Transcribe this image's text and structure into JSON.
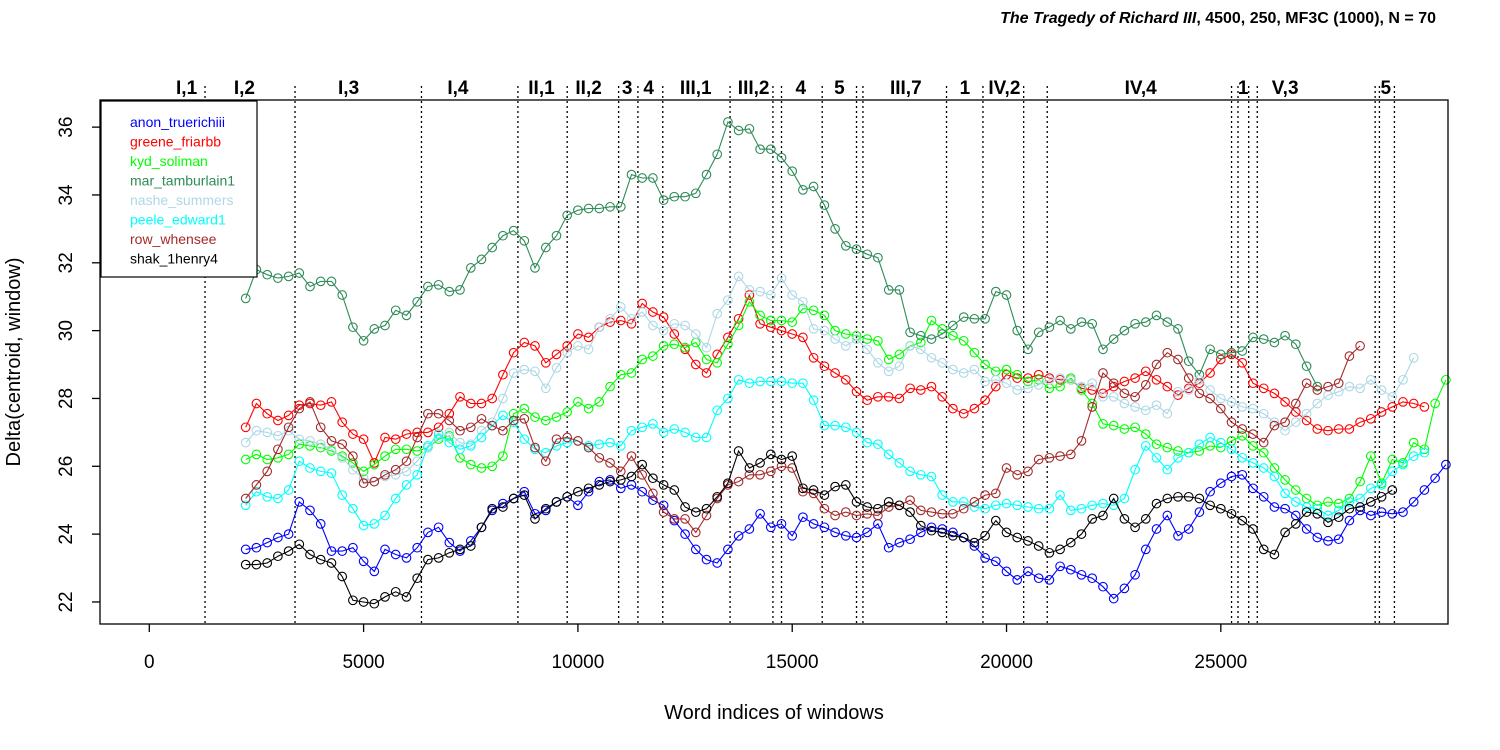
{
  "chart_data": {
    "type": "line",
    "title_italic": "The Tragedy of Richard III",
    "title_rest": ", 4500, 250, MF3C (1000), N = 70",
    "xlabel": "Word indices of windows",
    "ylabel": "Delta(centroid, window)",
    "xlim": [
      -1150,
      30300
    ],
    "ylim": [
      21.35,
      36.8
    ],
    "xticks": [
      0,
      5000,
      10000,
      15000,
      20000,
      25000
    ],
    "xtick_labels": [
      "0",
      "5000",
      "10000",
      "15000",
      "20000",
      "25000"
    ],
    "yticks": [
      22,
      24,
      26,
      28,
      30,
      32,
      34,
      36
    ],
    "ytick_labels": [
      "22",
      "24",
      "26",
      "28",
      "30",
      "32",
      "34",
      "36"
    ],
    "legend_position": "top-left",
    "x_start": 2250,
    "x_step": 250,
    "scene_boundaries": [
      1300,
      3400,
      6350,
      8600,
      9750,
      10950,
      11400,
      11980,
      13550,
      14550,
      14750,
      15700,
      16500,
      16650,
      18600,
      19450,
      20400,
      20950,
      25250,
      25400,
      25650,
      25850,
      28600,
      28700,
      29050
    ],
    "scene_labels": [
      {
        "text": "I,1",
        "x": 870
      },
      {
        "text": "I,2",
        "x": 2220
      },
      {
        "text": "I,3",
        "x": 4650
      },
      {
        "text": "I,4",
        "x": 7200
      },
      {
        "text": "II,1",
        "x": 9150
      },
      {
        "text": "II,2",
        "x": 10250
      },
      {
        "text": "3",
        "x": 11150
      },
      {
        "text": "4",
        "x": 11650
      },
      {
        "text": "III,1",
        "x": 12750
      },
      {
        "text": "III,2",
        "x": 14100
      },
      {
        "text": "4",
        "x": 15200
      },
      {
        "text": "5",
        "x": 16100
      },
      {
        "text": "III,7",
        "x": 17650
      },
      {
        "text": "1",
        "x": 19030
      },
      {
        "text": "IV,2",
        "x": 19950
      },
      {
        "text": "IV,4",
        "x": 23130
      },
      {
        "text": "1",
        "x": 25520
      },
      {
        "text": "V,3",
        "x": 26500
      },
      {
        "text": "5",
        "x": 28850
      }
    ],
    "series": [
      {
        "name": "anon_truerichiii",
        "color": "#0000ff",
        "values": [
          23.55,
          23.6,
          23.75,
          23.9,
          24.0,
          24.95,
          24.7,
          24.3,
          23.5,
          23.5,
          23.6,
          23.2,
          22.9,
          23.55,
          23.4,
          23.3,
          23.6,
          24.05,
          24.2,
          23.75,
          23.5,
          23.8,
          24.2,
          24.7,
          24.9,
          25.05,
          25.25,
          24.6,
          24.7,
          24.95,
          25.1,
          24.85,
          25.25,
          25.55,
          25.6,
          25.35,
          25.45,
          25.25,
          25.0,
          24.85,
          24.4,
          24.0,
          23.55,
          23.25,
          23.15,
          23.55,
          23.95,
          24.15,
          24.6,
          24.2,
          24.3,
          23.95,
          24.5,
          24.3,
          24.2,
          24.05,
          23.95,
          23.9,
          24.05,
          24.3,
          23.6,
          23.75,
          23.85,
          24.05,
          24.2,
          24.15,
          24.05,
          23.9,
          23.65,
          23.3,
          23.2,
          22.9,
          22.65,
          22.9,
          22.7,
          22.65,
          23.05,
          22.95,
          22.8,
          22.7,
          22.45,
          22.1,
          22.4,
          22.8,
          23.55,
          24.15,
          24.55,
          23.95,
          24.15,
          24.65,
          25.25,
          25.5,
          25.7,
          25.75,
          25.35,
          25.1,
          24.8,
          24.75,
          24.55,
          24.15,
          23.9,
          23.8,
          23.85,
          24.4,
          24.7,
          24.55,
          24.65,
          24.6,
          24.65,
          24.95,
          25.3,
          25.65,
          26.05
        ]
      },
      {
        "name": "greene_friarbb",
        "color": "#ff0000",
        "values": [
          27.15,
          27.85,
          27.55,
          27.35,
          27.5,
          27.8,
          27.85,
          27.8,
          27.9,
          27.3,
          26.95,
          26.8,
          26.1,
          26.85,
          26.8,
          26.95,
          27.0,
          27.0,
          27.15,
          27.55,
          28.05,
          27.85,
          27.85,
          28.0,
          28.7,
          29.35,
          29.65,
          29.55,
          29.05,
          29.3,
          29.55,
          29.9,
          29.8,
          30.1,
          30.25,
          30.3,
          30.2,
          30.8,
          30.55,
          30.4,
          29.9,
          29.45,
          29.0,
          28.75,
          29.3,
          29.8,
          30.35,
          31.05,
          30.2,
          30.1,
          30.0,
          29.9,
          29.8,
          29.2,
          28.95,
          28.75,
          28.55,
          28.2,
          27.95,
          28.05,
          28.05,
          28.0,
          28.3,
          28.25,
          28.35,
          28.05,
          27.7,
          27.55,
          27.7,
          27.95,
          28.35,
          28.7,
          28.6,
          28.6,
          28.7,
          28.6,
          28.55,
          28.55,
          28.3,
          28.25,
          28.15,
          28.35,
          28.5,
          28.6,
          28.8,
          28.55,
          28.35,
          28.1,
          28.3,
          28.45,
          28.75,
          29.15,
          29.3,
          29.05,
          28.45,
          28.3,
          28.15,
          27.9,
          27.6,
          27.35,
          27.1,
          27.05,
          27.1,
          27.1,
          27.3,
          27.4,
          27.6,
          27.75,
          27.9,
          27.85,
          27.75
        ]
      },
      {
        "name": "kyd_soliman",
        "color": "#00ff00",
        "values": [
          26.2,
          26.35,
          26.2,
          26.25,
          26.35,
          26.65,
          26.6,
          26.55,
          26.45,
          26.3,
          26.1,
          25.85,
          26.05,
          26.3,
          26.5,
          26.5,
          26.45,
          26.55,
          26.8,
          26.9,
          26.25,
          26.05,
          25.95,
          26.0,
          26.3,
          27.55,
          27.7,
          27.45,
          27.35,
          27.45,
          27.6,
          27.9,
          27.7,
          27.9,
          28.35,
          28.7,
          28.75,
          29.15,
          29.25,
          29.55,
          29.6,
          29.5,
          29.65,
          29.15,
          29.05,
          29.6,
          30.15,
          30.85,
          30.45,
          30.3,
          30.3,
          30.25,
          30.65,
          30.6,
          30.45,
          30.0,
          29.9,
          29.85,
          29.75,
          29.7,
          29.15,
          29.3,
          29.55,
          29.65,
          30.3,
          30.05,
          29.85,
          29.7,
          29.35,
          29.0,
          28.8,
          28.85,
          28.7,
          28.5,
          28.55,
          28.3,
          28.35,
          28.6,
          28.25,
          27.85,
          27.25,
          27.2,
          27.1,
          27.15,
          26.95,
          26.65,
          26.55,
          26.45,
          26.4,
          26.45,
          26.6,
          26.55,
          26.75,
          26.9,
          26.6,
          26.4,
          25.95,
          25.6,
          25.3,
          25.05,
          24.85,
          24.95,
          24.9,
          25.05,
          25.55,
          26.3,
          25.5,
          26.2,
          26.1,
          26.7,
          26.5,
          27.85,
          28.55
        ]
      },
      {
        "name": "mar_tamburlain1",
        "color": "#2e8b57",
        "values": [
          30.95,
          31.8,
          31.65,
          31.55,
          31.6,
          31.7,
          31.3,
          31.45,
          31.45,
          31.05,
          30.1,
          29.7,
          30.05,
          30.15,
          30.6,
          30.45,
          30.85,
          31.3,
          31.35,
          31.15,
          31.2,
          31.85,
          32.1,
          32.45,
          32.8,
          32.95,
          32.65,
          31.85,
          32.45,
          32.8,
          33.4,
          33.55,
          33.6,
          33.6,
          33.65,
          33.65,
          34.6,
          34.5,
          34.5,
          33.85,
          33.95,
          33.95,
          34.05,
          34.6,
          35.2,
          36.15,
          35.9,
          35.95,
          35.35,
          35.35,
          35.1,
          34.7,
          34.15,
          34.25,
          33.7,
          33.0,
          32.5,
          32.4,
          32.25,
          32.15,
          31.2,
          31.2,
          29.95,
          29.85,
          29.75,
          29.9,
          30.15,
          30.4,
          30.35,
          30.35,
          31.15,
          31.05,
          30.0,
          29.45,
          29.95,
          30.1,
          30.3,
          30.05,
          30.25,
          30.2,
          29.45,
          29.75,
          30.0,
          30.2,
          30.25,
          30.45,
          30.25,
          30.05,
          29.1,
          28.7,
          29.45,
          29.3,
          29.35,
          29.4,
          29.8,
          29.75,
          29.65,
          29.85,
          29.6,
          28.95,
          28.35
        ]
      },
      {
        "name": "nashe_summers",
        "color": "#add8e6",
        "values": [
          26.7,
          27.05,
          27.0,
          26.9,
          27.05,
          26.8,
          26.75,
          26.65,
          26.5,
          26.25,
          25.9,
          25.65,
          25.55,
          25.7,
          25.75,
          25.85,
          26.15,
          26.55,
          26.85,
          27.0,
          26.7,
          26.65,
          27.05,
          27.3,
          28.0,
          28.75,
          28.85,
          28.8,
          28.3,
          28.9,
          29.35,
          29.55,
          29.45,
          30.1,
          30.35,
          30.7,
          30.35,
          30.55,
          30.15,
          30.0,
          30.2,
          30.15,
          29.9,
          29.5,
          30.5,
          30.9,
          31.6,
          31.2,
          31.15,
          31.05,
          31.55,
          31.05,
          30.85,
          30.05,
          30.0,
          29.75,
          29.55,
          29.75,
          29.45,
          29.05,
          28.8,
          28.95,
          29.55,
          29.45,
          29.2,
          29.05,
          28.85,
          28.75,
          28.85,
          28.5,
          28.55,
          28.45,
          28.25,
          28.3,
          28.4,
          28.55,
          28.6,
          28.55,
          28.35,
          28.45,
          28.05,
          28.05,
          27.85,
          27.75,
          27.65,
          27.8,
          27.55,
          28.2,
          28.25,
          28.55,
          28.25,
          28.0,
          27.9,
          27.75,
          27.7,
          27.55,
          27.3,
          27.05,
          27.3,
          27.55,
          27.85,
          28.1,
          28.2,
          28.35,
          28.3,
          28.55,
          28.25,
          28.05,
          28.55,
          29.2
        ]
      },
      {
        "name": "peele_edward1",
        "color": "#00ffff",
        "values": [
          24.85,
          25.25,
          25.1,
          25.05,
          25.3,
          26.15,
          25.95,
          25.85,
          25.8,
          25.15,
          24.75,
          24.25,
          24.3,
          24.55,
          25.05,
          25.45,
          25.75,
          26.6,
          26.95,
          26.7,
          26.5,
          26.6,
          26.85,
          27.2,
          27.5,
          27.3,
          26.8,
          26.5,
          26.4,
          26.6,
          26.7,
          26.75,
          26.6,
          26.65,
          26.7,
          26.6,
          27.05,
          27.15,
          27.25,
          27.0,
          27.1,
          27.0,
          26.85,
          26.85,
          27.65,
          28.0,
          28.55,
          28.45,
          28.5,
          28.5,
          28.5,
          28.45,
          28.45,
          27.95,
          27.2,
          27.2,
          27.15,
          27.0,
          26.7,
          26.65,
          26.35,
          26.1,
          25.85,
          25.75,
          25.7,
          25.15,
          24.95,
          24.95,
          24.8,
          24.75,
          24.85,
          24.9,
          24.85,
          24.8,
          24.75,
          24.75,
          25.15,
          24.7,
          24.75,
          24.85,
          24.9,
          24.85,
          25.05,
          25.9,
          26.6,
          26.25,
          25.9,
          26.25,
          26.4,
          26.65,
          26.85,
          26.7,
          26.5,
          26.25,
          26.1,
          25.95,
          25.7,
          25.2,
          24.95,
          24.8,
          24.75,
          24.55,
          24.7,
          24.95,
          25.05,
          25.35,
          25.45,
          25.85,
          26.05,
          26.3,
          26.4
        ]
      },
      {
        "name": "row_whensee",
        "color": "#a52a2a",
        "values": [
          25.05,
          25.45,
          25.85,
          26.5,
          27.15,
          27.7,
          27.9,
          27.15,
          26.75,
          26.65,
          26.3,
          25.5,
          25.55,
          25.75,
          25.9,
          26.15,
          26.85,
          27.55,
          27.55,
          27.35,
          27.05,
          27.15,
          27.4,
          27.2,
          27.05,
          27.35,
          27.4,
          26.55,
          26.15,
          26.8,
          26.85,
          26.75,
          26.55,
          26.25,
          26.1,
          25.85,
          26.3,
          25.75,
          25.2,
          24.65,
          24.45,
          24.45,
          24.05,
          24.55,
          25.05,
          25.45,
          25.55,
          25.75,
          25.75,
          25.85,
          26.0,
          25.95,
          25.25,
          25.2,
          24.75,
          24.55,
          24.65,
          24.55,
          24.6,
          24.55,
          24.8,
          24.85,
          25.0,
          24.7,
          24.65,
          24.6,
          24.6,
          24.75,
          24.95,
          25.15,
          25.2,
          25.95,
          25.75,
          25.85,
          26.2,
          26.25,
          26.3,
          26.35,
          26.75,
          27.75,
          28.75,
          28.45,
          28.15,
          28.05,
          28.4,
          29.0,
          29.35,
          29.15,
          28.6,
          28.15,
          28.0,
          27.7,
          27.3,
          27.1,
          26.95,
          26.7,
          27.2,
          27.3,
          27.85,
          28.45,
          28.25,
          28.35,
          28.45,
          29.25,
          29.55
        ]
      },
      {
        "name": "shak_1henry4",
        "color": "#000000",
        "values": [
          23.1,
          23.1,
          23.15,
          23.35,
          23.5,
          23.7,
          23.4,
          23.25,
          23.15,
          22.75,
          22.05,
          22.0,
          21.95,
          22.15,
          22.3,
          22.15,
          22.7,
          23.25,
          23.3,
          23.45,
          23.55,
          23.65,
          24.2,
          24.75,
          24.8,
          25.05,
          25.15,
          24.45,
          24.75,
          24.95,
          25.1,
          25.25,
          25.35,
          25.45,
          25.55,
          25.6,
          25.7,
          26.05,
          25.65,
          25.45,
          25.3,
          24.8,
          24.65,
          24.75,
          25.1,
          25.5,
          26.45,
          25.95,
          26.1,
          26.35,
          26.2,
          26.3,
          25.35,
          25.3,
          25.15,
          25.4,
          25.45,
          24.95,
          24.8,
          24.75,
          24.95,
          24.85,
          24.65,
          24.25,
          24.1,
          24.05,
          23.95,
          23.9,
          23.75,
          23.95,
          24.4,
          24.05,
          23.9,
          23.8,
          23.65,
          23.45,
          23.55,
          23.75,
          24.0,
          24.45,
          24.55,
          25.05,
          24.45,
          24.2,
          24.45,
          24.9,
          25.05,
          25.1,
          25.1,
          25.05,
          24.85,
          24.75,
          24.6,
          24.4,
          24.15,
          23.55,
          23.4,
          24.05,
          24.3,
          24.65,
          24.6,
          24.35,
          24.5,
          24.75,
          24.8,
          24.95,
          25.1,
          25.3
        ]
      }
    ]
  }
}
